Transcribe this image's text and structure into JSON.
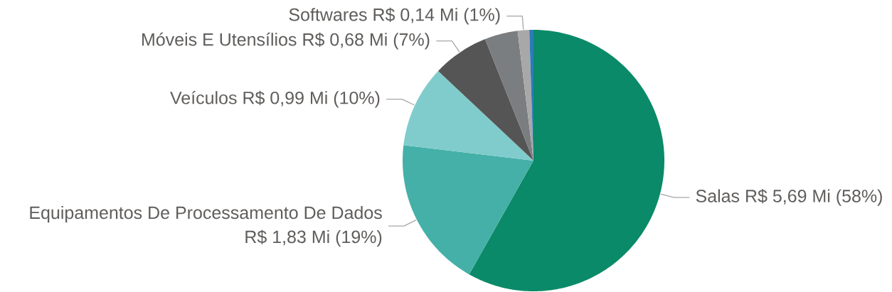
{
  "chart_data": {
    "type": "pie",
    "categories": [
      "Salas",
      "Equipamentos De Processamento De Dados",
      "Veículos",
      "Móveis E Utensílios",
      null,
      "Softwares",
      null
    ],
    "values": [
      5.69,
      1.83,
      0.99,
      0.68,
      0.4,
      0.14,
      0.05
    ],
    "colors": [
      "#0a8a68",
      "#45b0a8",
      "#80cccc",
      "#555555",
      "#7b7e80",
      "#a8a8a8",
      "#2b7bb9"
    ],
    "value_labels": [
      "R$ 5,69 Mi (58%)",
      "R$ 1,83 Mi (19%)",
      "R$ 0,99 Mi (10%)",
      "R$ 0,68 Mi (7%)",
      null,
      "R$ 0,14 Mi (1%)",
      null
    ]
  }
}
